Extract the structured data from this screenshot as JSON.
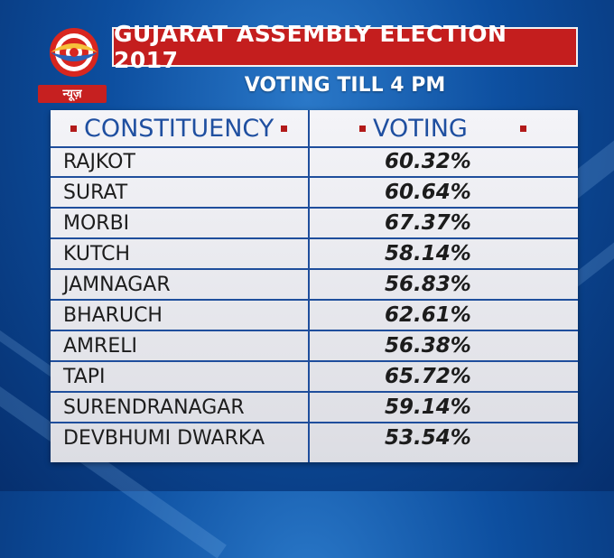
{
  "logo": {
    "tag_text": "न्यूज़"
  },
  "header": {
    "title": "GUJARAT ASSEMBLY ELECTION 2017",
    "subtitle": "VOTING TILL 4 PM"
  },
  "table": {
    "columns": [
      "CONSTITUENCY",
      "VOTING"
    ],
    "rows": [
      {
        "constituency": "RAJKOT",
        "voting": "60.32%"
      },
      {
        "constituency": "SURAT",
        "voting": "60.64%"
      },
      {
        "constituency": "MORBI",
        "voting": "67.37%"
      },
      {
        "constituency": "KUTCH",
        "voting": "58.14%"
      },
      {
        "constituency": "JAMNAGAR",
        "voting": "56.83%"
      },
      {
        "constituency": "BHARUCH",
        "voting": "62.61%"
      },
      {
        "constituency": "AMRELI",
        "voting": "56.38%"
      },
      {
        "constituency": "TAPI",
        "voting": "65.72%"
      },
      {
        "constituency": "SURENDRANAGAR",
        "voting": "59.14%"
      },
      {
        "constituency": "DEVBHUMI DWARKA",
        "voting": "53.54%"
      }
    ]
  },
  "colors": {
    "title_bar": "#c41e1e",
    "header_text": "#1f4fa0",
    "grid_line": "#1f4e9c",
    "bullet": "#b21a1a"
  }
}
